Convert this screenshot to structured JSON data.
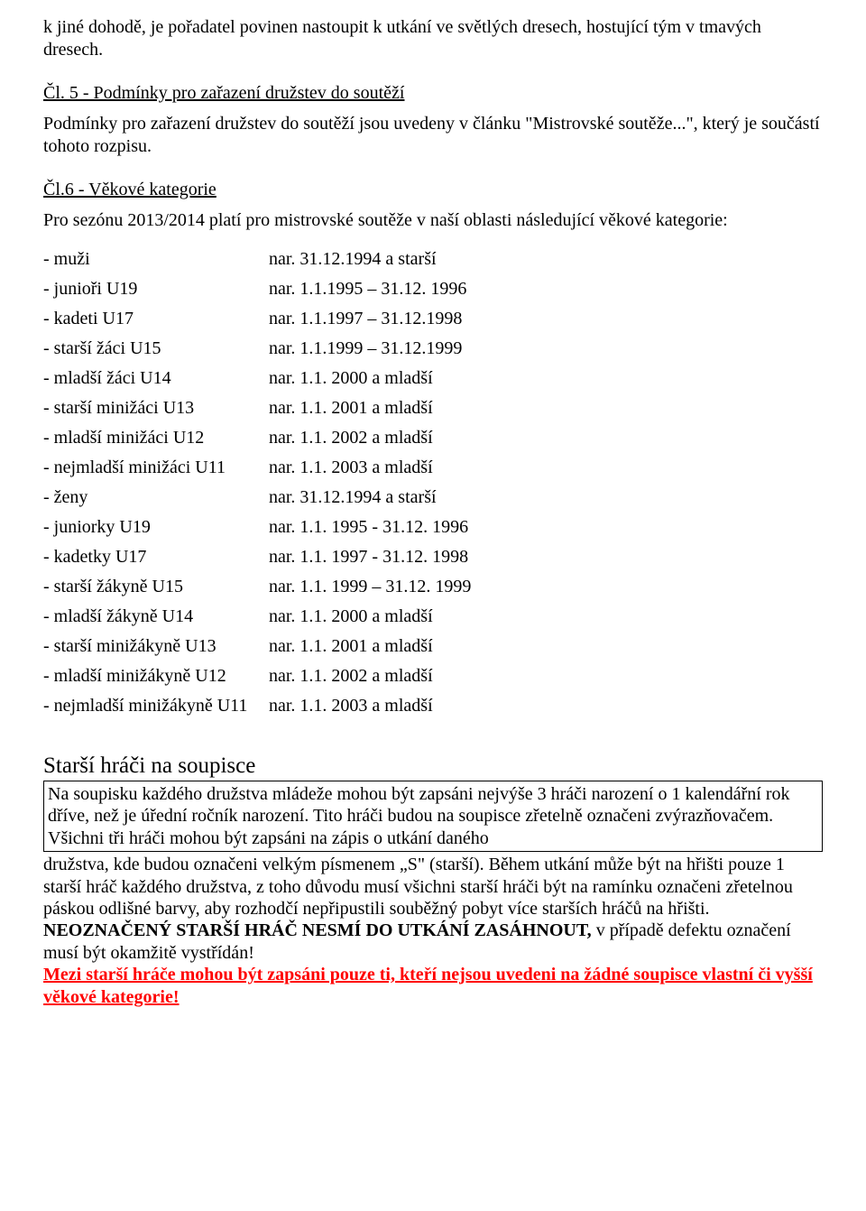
{
  "intro_continued": "k jiné dohodě, je pořadatel povinen nastoupit k utkání ve světlých dresech, hostující tým v tmavých dresech.",
  "section5": {
    "heading": " Čl. 5 - Podmínky pro zařazení družstev do soutěží",
    "p1": "Podmínky pro zařazení družstev do soutěží jsou uvedeny v článku \"Mistrovské soutěže...\", který je součástí tohoto rozpisu."
  },
  "section6": {
    "heading": " Čl.6 - Věkové kategorie",
    "p1": "Pro sezónu 2013/2014 platí pro mistrovské soutěže v naší oblasti  následující věkové kategorie:",
    "rows": [
      {
        "label": " - muži",
        "value": "nar. 31.12.1994 a starší"
      },
      {
        "label": " - junioři  U19",
        "value": "nar. 1.1.1995 – 31.12. 1996"
      },
      {
        "label": " - kadeti U17",
        "value": "nar. 1.1.1997 – 31.12.1998"
      },
      {
        "label": " - starší žáci U15",
        "value": "nar. 1.1.1999 – 31.12.1999"
      },
      {
        "label": " - mladší žáci U14",
        "value": "nar. 1.1. 2000 a mladší"
      },
      {
        "label": " - starší minižáci U13",
        "value": "nar. 1.1. 2001 a mladší"
      },
      {
        "label": " - mladší minižáci U12",
        "value": "nar. 1.1. 2002 a mladší"
      },
      {
        "label": " - nejmladší minižáci U11",
        "value": "nar. 1.1. 2003 a mladší"
      },
      {
        "label": " - ženy",
        "value": "nar. 31.12.1994 a starší"
      },
      {
        "label": " - juniorky U19",
        "value": "nar. 1.1. 1995 - 31.12. 1996"
      },
      {
        "label": " - kadetky U17",
        "value": "nar. 1.1. 1997 - 31.12. 1998"
      },
      {
        "label": " - starší žákyně U15",
        "value": "nar. 1.1. 1999 – 31.12. 1999"
      },
      {
        "label": " - mladší žákyně U14",
        "value": "nar. 1.1. 2000 a mladší"
      },
      {
        "label": " - starší minižákyně U13",
        "value": "nar. 1.1. 2001 a mladší"
      },
      {
        "label": " - mladší minižákyně U12",
        "value": "nar. 1.1. 2002 a mladší"
      },
      {
        "label": " - nejmladší minižákyně U11",
        "value": "nar. 1.1. 2003 a mladší"
      }
    ]
  },
  "older_players": {
    "heading": " Starší hráči na soupisce",
    "box_text": "Na soupisku každého družstva mládeže mohou být zapsáni nejvýše 3 hráči narození o 1 kalendářní rok dříve, než je úřední ročník narození. Tito hráči budou na soupisce zřetelně označeni zvýrazňovačem. Všichni tři hráči mohou být zapsáni na zápis o utkání daného",
    "post_text_1": "družstva, kde budou označeni velkým písmenem „S\" (starší). Během utkání může být na hřišti pouze 1 starší hráč každého družstva, z toho důvodu musí všichni starší hráči být na ramínku označeni zřetelnou páskou odlišné barvy, aby rozhodčí nepřipustili souběžný pobyt více starších hráčů na hřišti. ",
    "bold_part": "NEOZNAČENÝ STARŠÍ HRÁČ NESMÍ DO UTKÁNÍ ZASÁHNOUT, ",
    "post_text_2": "v případě defektu označení musí být okamžitě vystřídán!",
    "red_text": "Mezi starší hráče mohou být zapsáni pouze ti, kteří nejsou uvedeni na žádné soupisce vlastní či vyšší věkové kategorie!"
  }
}
